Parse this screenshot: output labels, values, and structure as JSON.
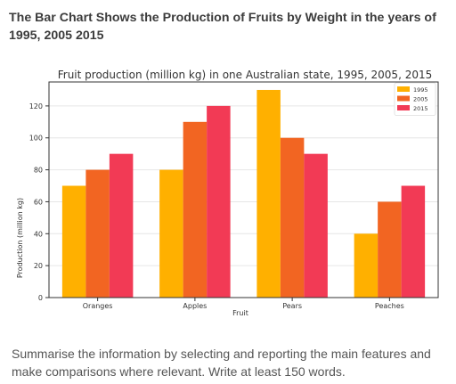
{
  "heading": "The Bar Chart Shows the Production of Fruits by Weight in the years of 1995, 2005 2015",
  "prompt": "Summarise the information by selecting and reporting the main features and make comparisons where relevant. Write at least 150 words.",
  "chart_data": {
    "type": "bar",
    "title": "Fruit production (million kg) in one Australian state, 1995, 2005, 2015",
    "xlabel": "Fruit",
    "ylabel": "Production (million kg)",
    "categories": [
      "Oranges",
      "Apples",
      "Pears",
      "Peaches"
    ],
    "ylim": [
      0,
      135
    ],
    "yticks": [
      0,
      20,
      40,
      60,
      80,
      100,
      120
    ],
    "grid": true,
    "legend": "top-right",
    "series": [
      {
        "name": "1995",
        "color": "#FFB000",
        "values": [
          70,
          80,
          130,
          40
        ]
      },
      {
        "name": "2005",
        "color": "#F26522",
        "values": [
          80,
          110,
          100,
          60
        ]
      },
      {
        "name": "2015",
        "color": "#F23A55",
        "values": [
          90,
          120,
          90,
          70
        ]
      }
    ]
  }
}
